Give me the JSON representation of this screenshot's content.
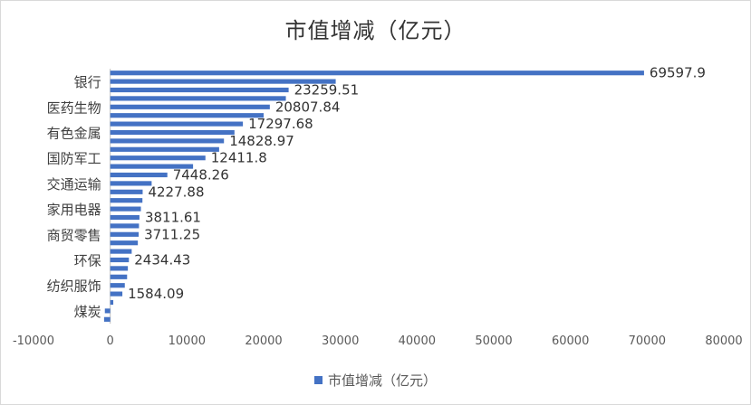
{
  "chart_data": {
    "type": "bar",
    "orientation": "horizontal",
    "title": "市值增减（亿元）",
    "legend": [
      {
        "name": "市值增减（亿元）",
        "color": "#4472c4"
      }
    ],
    "legend_position": "bottom",
    "xlim": [
      -10000,
      80000
    ],
    "x_ticks": [
      "-10000",
      "0",
      "10000",
      "20000",
      "30000",
      "40000",
      "50000",
      "60000",
      "70000",
      "80000"
    ],
    "y_tick_labels": [
      "银行",
      "医药生物",
      "有色金属",
      "国防军工",
      "交通运输",
      "家用电器",
      "商贸零售",
      "环保",
      "纺织服饰",
      "煤炭"
    ],
    "values": [
      69597.9,
      29400,
      23259.51,
      22900,
      20807.84,
      20000,
      17297.68,
      16200,
      14828.97,
      14200,
      12411.8,
      10800,
      7448.26,
      5400,
      4227.88,
      4200,
      4000,
      3811.61,
      3750,
      3711.25,
      3600,
      2800,
      2434.43,
      2300,
      2200,
      1900,
      1584.09,
      400,
      -700,
      -800
    ],
    "data_labels": {
      "0": "69597.9",
      "2": "23259.51",
      "4": "20807.84",
      "6": "17297.68",
      "8": "14828.97",
      "10": "12411.8",
      "12": "7448.26",
      "14": "4227.88",
      "17": "3811.61",
      "19": "3711.25",
      "22": "2434.43",
      "26": "1584.09"
    },
    "color": "#4472c4",
    "grid": false
  }
}
